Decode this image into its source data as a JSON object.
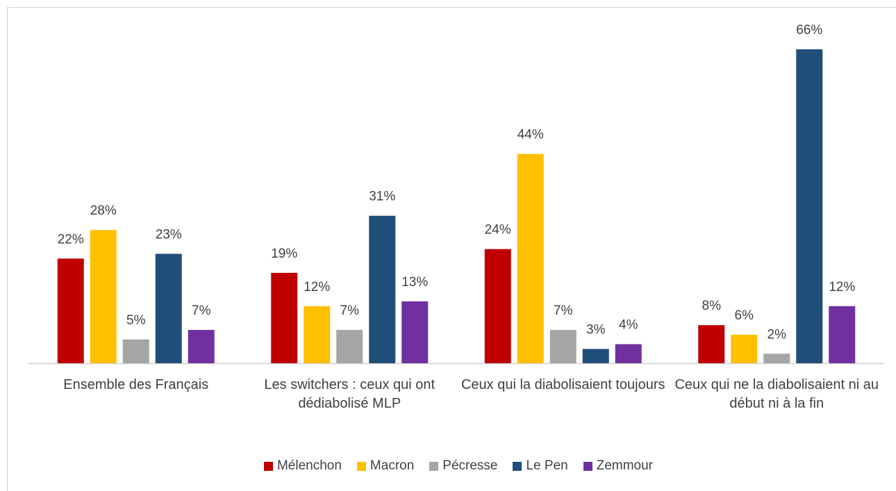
{
  "chart_data": {
    "type": "bar",
    "categories": [
      "Ensemble des Français",
      "Les switchers : ceux qui ont dédiabolisé MLP",
      "Ceux qui la diabolisaient toujours",
      "Ceux qui ne la diabolisaient ni au début ni à la fin"
    ],
    "series": [
      {
        "name": "Mélenchon",
        "color": "#c00000",
        "values": [
          22,
          19,
          24,
          8
        ],
        "value_labels": [
          "22%",
          "19%",
          "24%",
          "8%"
        ]
      },
      {
        "name": "Macron",
        "color": "#ffc000",
        "values": [
          28,
          12,
          44,
          6
        ],
        "value_labels": [
          "28%",
          "12%",
          "44%",
          "6%"
        ]
      },
      {
        "name": "Pécresse",
        "color": "#a5a5a5",
        "values": [
          5,
          7,
          7,
          2
        ],
        "value_labels": [
          "5%",
          "7%",
          "7%",
          "2%"
        ]
      },
      {
        "name": "Le Pen",
        "color": "#1f4e79",
        "values": [
          23,
          31,
          3,
          66
        ],
        "value_labels": [
          "23%",
          "31%",
          "3%",
          "66%"
        ]
      },
      {
        "name": "Zemmour",
        "color": "#7030a0",
        "values": [
          7,
          13,
          4,
          12
        ],
        "value_labels": [
          "7%",
          "13%",
          "4%",
          "12%"
        ]
      }
    ],
    "legend": "bottom"
  }
}
